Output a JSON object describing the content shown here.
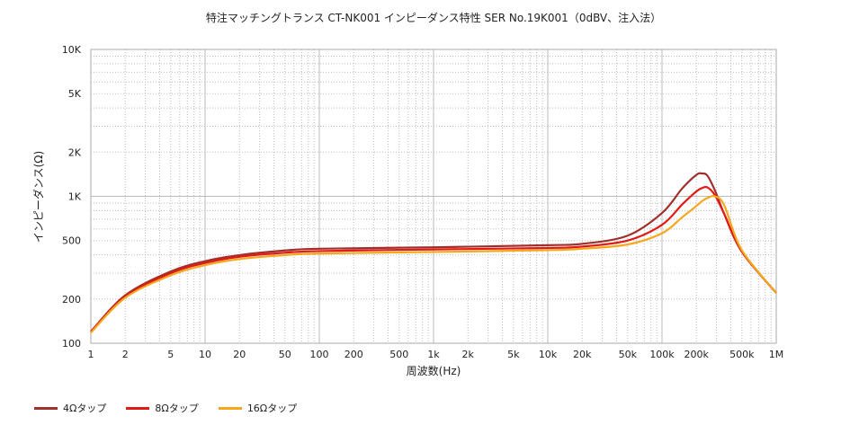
{
  "chart_data": {
    "type": "line",
    "title": "特注マッチングトランス CT-NK001 インピーダンス特性 SER No.19K001（0dBV、注入法）",
    "xlabel": "周波数(Hz)",
    "ylabel": "インピーダンス(Ω)",
    "xscale": "log",
    "yscale": "log",
    "xlim": [
      1,
      1000000
    ],
    "ylim": [
      100,
      10000
    ],
    "grid": true,
    "legend_position": "bottom-left",
    "x_ticks": [
      1,
      2,
      5,
      10,
      20,
      50,
      100,
      200,
      500,
      1000,
      2000,
      5000,
      10000,
      20000,
      50000,
      100000,
      200000,
      500000,
      1000000
    ],
    "x_tick_labels": [
      "1",
      "2",
      "5",
      "10",
      "20",
      "50",
      "100",
      "200",
      "500",
      "1k",
      "2k",
      "5k",
      "10k",
      "20k",
      "50k",
      "100k",
      "200k",
      "500k",
      "1M"
    ],
    "y_ticks": [
      100,
      200,
      500,
      1000,
      2000,
      5000,
      10000
    ],
    "y_tick_labels": [
      "100",
      "200",
      "500",
      "1K",
      "2K",
      "5K",
      "10K"
    ],
    "x": [
      1,
      2,
      5,
      10,
      20,
      50,
      100,
      1000,
      10000,
      20000,
      50000,
      100000,
      150000,
      200000,
      225000,
      250000,
      290000,
      350000,
      500000,
      1000000
    ],
    "series": [
      {
        "name": "4Ωタップ",
        "color": "#a0302c",
        "values": [
          120,
          212,
          308,
          362,
          398,
          428,
          440,
          450,
          465,
          475,
          540,
          770,
          1130,
          1400,
          1430,
          1380,
          1100,
          760,
          420,
          220
        ]
      },
      {
        "name": "8Ωタップ",
        "color": "#e01b14",
        "values": [
          120,
          208,
          300,
          352,
          388,
          413,
          424,
          435,
          445,
          455,
          500,
          640,
          880,
          1080,
          1140,
          1150,
          1020,
          760,
          420,
          220
        ]
      },
      {
        "name": "16Ωタップ",
        "color": "#f5a81c",
        "values": [
          118,
          204,
          290,
          340,
          374,
          398,
          408,
          418,
          430,
          440,
          470,
          560,
          720,
          860,
          930,
          975,
          1000,
          870,
          430,
          220
        ]
      }
    ]
  }
}
